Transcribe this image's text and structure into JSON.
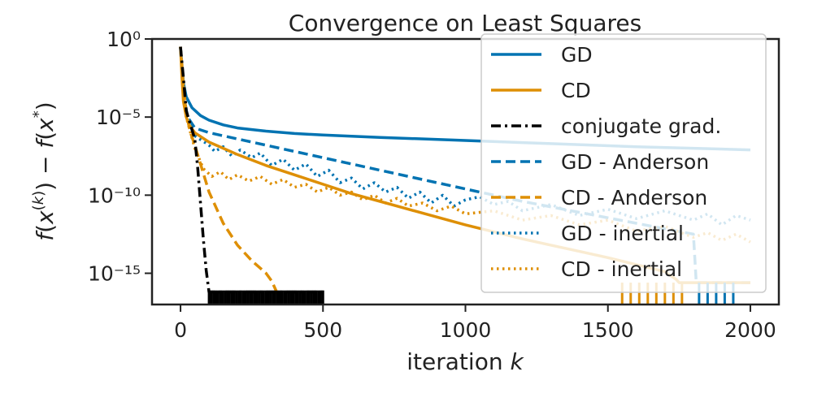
{
  "chart_data": {
    "type": "line",
    "title": "Convergence on Least Squares",
    "xlabel": "iteration k",
    "ylabel": "f(x(k)) − f(x*)",
    "xlim": [
      -100,
      2100
    ],
    "ylim_log10": [
      -17,
      0
    ],
    "yscale": "log",
    "x_ticks": [
      0,
      500,
      1000,
      1500,
      2000
    ],
    "x_tick_labels": [
      "0",
      "500",
      "1000",
      "1500",
      "2000"
    ],
    "y_ticks_log10": [
      0,
      -5,
      -10,
      -15
    ],
    "y_tick_labels": [
      "10⁰",
      "10⁻⁵",
      "10⁻¹⁰",
      "10⁻¹⁵"
    ],
    "grid": false,
    "legend_position": "top-right",
    "series": [
      {
        "name": "GD",
        "color": "#0173b2",
        "style": "solid",
        "points": [
          [
            0,
            -0.5
          ],
          [
            5,
            -1.8
          ],
          [
            10,
            -2.8
          ],
          [
            20,
            -3.7
          ],
          [
            40,
            -4.4
          ],
          [
            70,
            -4.9
          ],
          [
            100,
            -5.2
          ],
          [
            150,
            -5.5
          ],
          [
            200,
            -5.7
          ],
          [
            300,
            -5.9
          ],
          [
            400,
            -6.05
          ],
          [
            500,
            -6.15
          ],
          [
            700,
            -6.3
          ],
          [
            1000,
            -6.5
          ],
          [
            1300,
            -6.7
          ],
          [
            1600,
            -6.9
          ],
          [
            1800,
            -7.0
          ],
          [
            2000,
            -7.1
          ]
        ]
      },
      {
        "name": "CD",
        "color": "#de8f05",
        "style": "solid",
        "points": [
          [
            0,
            -0.5
          ],
          [
            5,
            -2.5
          ],
          [
            10,
            -4.0
          ],
          [
            20,
            -5.0
          ],
          [
            30,
            -5.5
          ],
          [
            50,
            -6.0
          ],
          [
            100,
            -6.6
          ],
          [
            150,
            -7.0
          ],
          [
            200,
            -7.4
          ],
          [
            300,
            -8.1
          ],
          [
            400,
            -8.7
          ],
          [
            500,
            -9.3
          ],
          [
            600,
            -9.9
          ],
          [
            700,
            -10.4
          ],
          [
            800,
            -10.9
          ],
          [
            900,
            -11.4
          ],
          [
            1000,
            -11.9
          ],
          [
            1100,
            -12.35
          ],
          [
            1200,
            -12.8
          ],
          [
            1300,
            -13.2
          ],
          [
            1400,
            -13.6
          ],
          [
            1500,
            -14.0
          ],
          [
            1600,
            -14.45
          ],
          [
            1700,
            -14.9
          ],
          [
            1740,
            -15.4
          ],
          [
            1750,
            -15.6
          ],
          [
            2000,
            -15.6
          ]
        ]
      },
      {
        "name": "conjugate grad.",
        "color": "#000000",
        "style": "dashdot",
        "points": [
          [
            0,
            -0.5
          ],
          [
            10,
            -2.5
          ],
          [
            20,
            -4.6
          ],
          [
            35,
            -5.5
          ],
          [
            50,
            -6.4
          ],
          [
            60,
            -8.2
          ],
          [
            70,
            -10.5
          ],
          [
            80,
            -12.8
          ],
          [
            90,
            -14.8
          ],
          [
            100,
            -16.2
          ],
          [
            500,
            -16.2
          ]
        ]
      },
      {
        "name": "GD - Anderson",
        "color": "#0173b2",
        "style": "dashed",
        "points": [
          [
            0,
            -0.5
          ],
          [
            10,
            -3.5
          ],
          [
            25,
            -5.0
          ],
          [
            50,
            -5.7
          ],
          [
            100,
            -6.0
          ],
          [
            200,
            -6.4
          ],
          [
            400,
            -7.2
          ],
          [
            600,
            -8.0
          ],
          [
            800,
            -8.8
          ],
          [
            1000,
            -9.6
          ],
          [
            1200,
            -10.4
          ],
          [
            1400,
            -11.1
          ],
          [
            1600,
            -11.8
          ],
          [
            1800,
            -12.5
          ],
          [
            1810,
            -15.6
          ],
          [
            2000,
            -15.6
          ]
        ]
      },
      {
        "name": "CD - Anderson",
        "color": "#de8f05",
        "style": "dashed",
        "points": [
          [
            0,
            -0.5
          ],
          [
            10,
            -3.0
          ],
          [
            20,
            -4.8
          ],
          [
            35,
            -6.0
          ],
          [
            50,
            -6.8
          ],
          [
            70,
            -8.0
          ],
          [
            100,
            -9.8
          ],
          [
            150,
            -11.8
          ],
          [
            200,
            -13.2
          ],
          [
            250,
            -14.2
          ],
          [
            300,
            -15.0
          ],
          [
            320,
            -15.5
          ],
          [
            340,
            -16.3
          ],
          [
            350,
            -16.3
          ]
        ]
      },
      {
        "name": "GD - inertial",
        "color": "#0173b2",
        "style": "dotted",
        "points": [
          [
            0,
            -0.5
          ],
          [
            20,
            -5.0
          ],
          [
            50,
            -6.2
          ],
          [
            100,
            -6.8
          ],
          [
            120,
            -7.2
          ],
          [
            150,
            -6.9
          ],
          [
            180,
            -7.5
          ],
          [
            210,
            -7.1
          ],
          [
            250,
            -7.6
          ],
          [
            280,
            -7.3
          ],
          [
            320,
            -8.1
          ],
          [
            360,
            -7.7
          ],
          [
            400,
            -8.4
          ],
          [
            440,
            -8.0
          ],
          [
            480,
            -8.8
          ],
          [
            520,
            -8.4
          ],
          [
            560,
            -9.2
          ],
          [
            600,
            -8.9
          ],
          [
            640,
            -9.6
          ],
          [
            680,
            -9.2
          ],
          [
            720,
            -9.8
          ],
          [
            760,
            -9.5
          ],
          [
            800,
            -10.2
          ],
          [
            840,
            -9.8
          ],
          [
            880,
            -10.5
          ],
          [
            920,
            -10.0
          ],
          [
            960,
            -10.7
          ],
          [
            1000,
            -10.3
          ],
          [
            1050,
            -10.1
          ],
          [
            1100,
            -10.6
          ],
          [
            1150,
            -10.4
          ],
          [
            1200,
            -11.0
          ],
          [
            1300,
            -10.6
          ],
          [
            1400,
            -11.3
          ],
          [
            1500,
            -10.9
          ],
          [
            1600,
            -11.5
          ],
          [
            1700,
            -11.0
          ],
          [
            1800,
            -11.6
          ],
          [
            1850,
            -11.2
          ],
          [
            1900,
            -11.9
          ],
          [
            1950,
            -11.3
          ],
          [
            2000,
            -11.6
          ]
        ]
      },
      {
        "name": "CD - inertial",
        "color": "#de8f05",
        "style": "dotted",
        "points": [
          [
            0,
            -0.5
          ],
          [
            20,
            -5.0
          ],
          [
            50,
            -7.0
          ],
          [
            80,
            -8.3
          ],
          [
            110,
            -8.8
          ],
          [
            140,
            -8.5
          ],
          [
            170,
            -9.0
          ],
          [
            200,
            -8.7
          ],
          [
            240,
            -9.1
          ],
          [
            280,
            -8.8
          ],
          [
            320,
            -9.3
          ],
          [
            360,
            -9.0
          ],
          [
            400,
            -9.5
          ],
          [
            440,
            -9.3
          ],
          [
            480,
            -9.8
          ],
          [
            520,
            -9.5
          ],
          [
            560,
            -10.0
          ],
          [
            600,
            -9.8
          ],
          [
            640,
            -10.3
          ],
          [
            680,
            -10.0
          ],
          [
            720,
            -10.5
          ],
          [
            760,
            -10.2
          ],
          [
            800,
            -10.7
          ],
          [
            850,
            -10.5
          ],
          [
            900,
            -11.0
          ],
          [
            950,
            -10.7
          ],
          [
            1000,
            -11.2
          ],
          [
            1100,
            -11.0
          ],
          [
            1200,
            -11.6
          ],
          [
            1300,
            -11.3
          ],
          [
            1400,
            -11.9
          ],
          [
            1500,
            -11.6
          ],
          [
            1600,
            -12.3
          ],
          [
            1700,
            -12.0
          ],
          [
            1800,
            -12.7
          ],
          [
            1850,
            -12.4
          ],
          [
            1900,
            -12.9
          ],
          [
            1950,
            -12.5
          ],
          [
            2000,
            -13.0
          ]
        ]
      }
    ]
  }
}
